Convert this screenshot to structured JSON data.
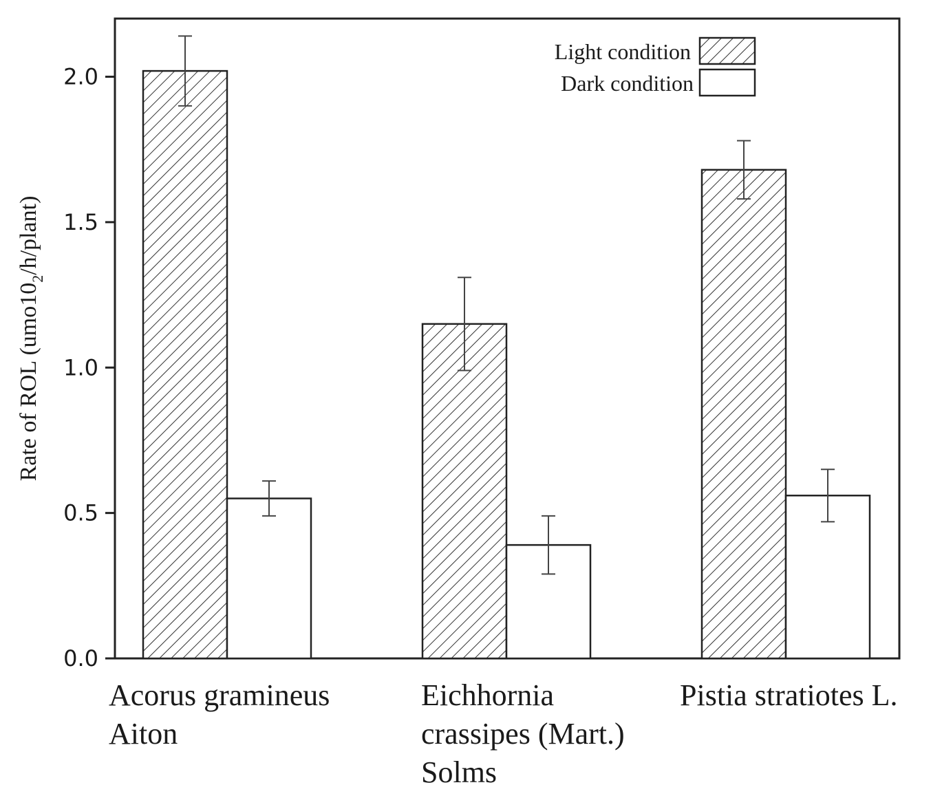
{
  "chart_data": {
    "type": "bar",
    "ylabel_main": "Rate of ROL (umo10",
    "ylabel_sub": "2",
    "ylabel_tail": "/h/plant)",
    "ylim": [
      0,
      2.2
    ],
    "yticks": [
      0.0,
      0.5,
      1.0,
      1.5,
      2.0
    ],
    "ytick_labels": [
      "0.0",
      "0.5",
      "1.0",
      "1.5",
      "2.0"
    ],
    "categories": [
      [
        "Acorus gramineus",
        "Aiton"
      ],
      [
        "Eichhornia",
        "crassipes (Mart.)",
        "Solms"
      ],
      [
        "Pistia stratiotes L."
      ]
    ],
    "series": [
      {
        "name": "Light condition",
        "pattern": "hatched",
        "values": [
          2.02,
          1.15,
          1.68
        ],
        "errors": [
          0.12,
          0.16,
          0.1
        ]
      },
      {
        "name": "Dark condition",
        "pattern": "open",
        "values": [
          0.55,
          0.39,
          0.56
        ],
        "errors": [
          0.06,
          0.1,
          0.09
        ]
      }
    ],
    "legend_position": "top-right"
  }
}
